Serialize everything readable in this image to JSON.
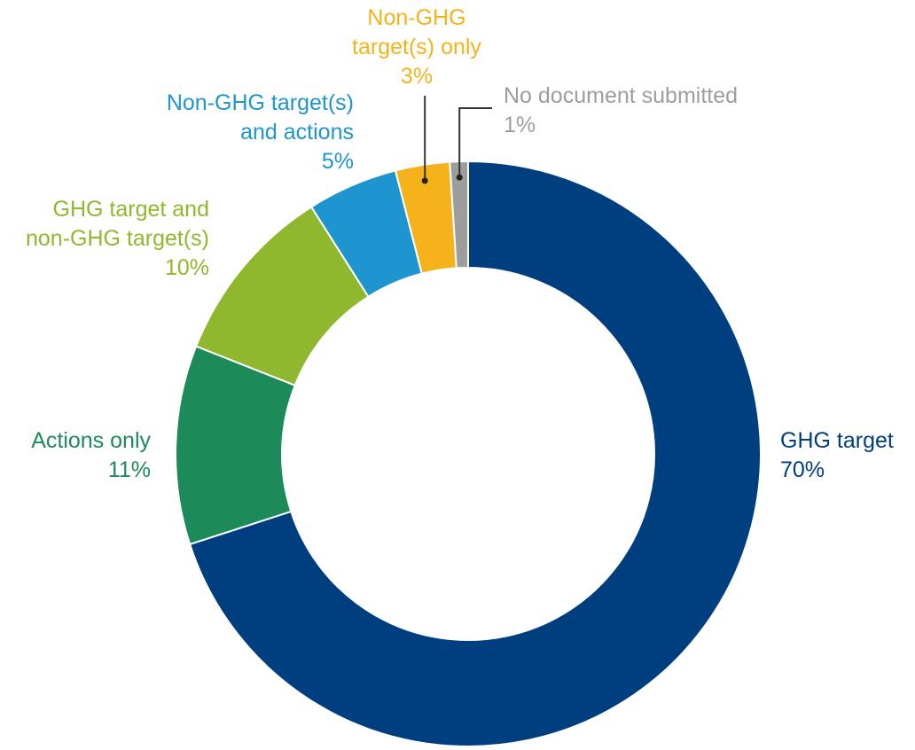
{
  "chart_data": {
    "type": "pie",
    "title": "",
    "slices": [
      {
        "lines": [
          "GHG target"
        ],
        "value_label": "70%",
        "value": 70,
        "color": "#003f7f"
      },
      {
        "lines": [
          "Actions only"
        ],
        "value_label": "11%",
        "value": 11,
        "color": "#1d8a5a"
      },
      {
        "lines": [
          "GHG target and",
          "non-GHG target(s)"
        ],
        "value_label": "10%",
        "value": 10,
        "color": "#8fb82e"
      },
      {
        "lines": [
          "Non-GHG target(s)",
          "and actions"
        ],
        "value_label": "5%",
        "value": 5,
        "color": "#1e95cf"
      },
      {
        "lines": [
          "Non-GHG",
          "target(s) only"
        ],
        "value_label": "3%",
        "value": 3,
        "color": "#f5b21b"
      },
      {
        "lines": [
          "No document submitted"
        ],
        "value_label": "1%",
        "value": 1,
        "color": "#9d9d9d"
      }
    ],
    "legend": "none"
  }
}
